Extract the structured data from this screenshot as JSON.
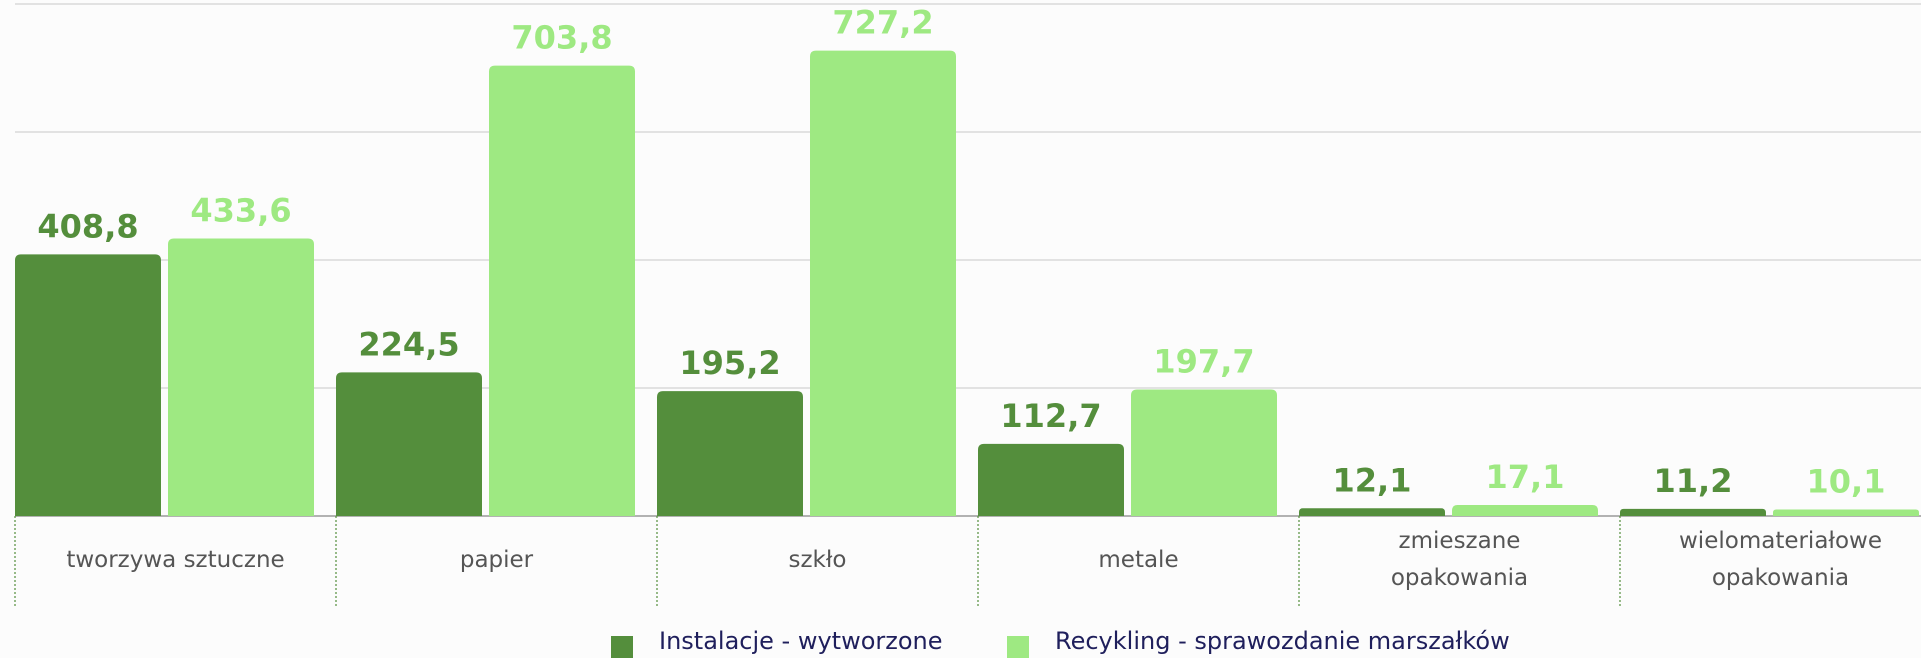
{
  "chart_data": {
    "type": "bar",
    "categories": [
      "tworzywa sztuczne",
      "papier",
      "szkło",
      "metale",
      "zmieszane opakowania",
      "wielomateriałowe opakowania"
    ],
    "series": [
      {
        "name": "Instalacje - wytworzone",
        "color": "#548e3c",
        "values": [
          408.8,
          224.5,
          195.2,
          112.7,
          12.1,
          11.2
        ],
        "value_labels": [
          "408,8",
          "224,5",
          "195,2",
          "112,7",
          "12,1",
          "11,2"
        ]
      },
      {
        "name": "Recykling - sprawozdanie marszałków",
        "color": "#9ee982",
        "values": [
          433.6,
          703.8,
          727.2,
          197.7,
          17.1,
          10.1
        ],
        "value_labels": [
          "433,6",
          "703,8",
          "727,2",
          "197,7",
          "17,1",
          "10,1"
        ]
      }
    ],
    "ylim": [
      0,
      800
    ],
    "yticks": [
      0,
      200,
      400,
      600,
      800
    ],
    "grid": true,
    "legend": "bottom"
  }
}
